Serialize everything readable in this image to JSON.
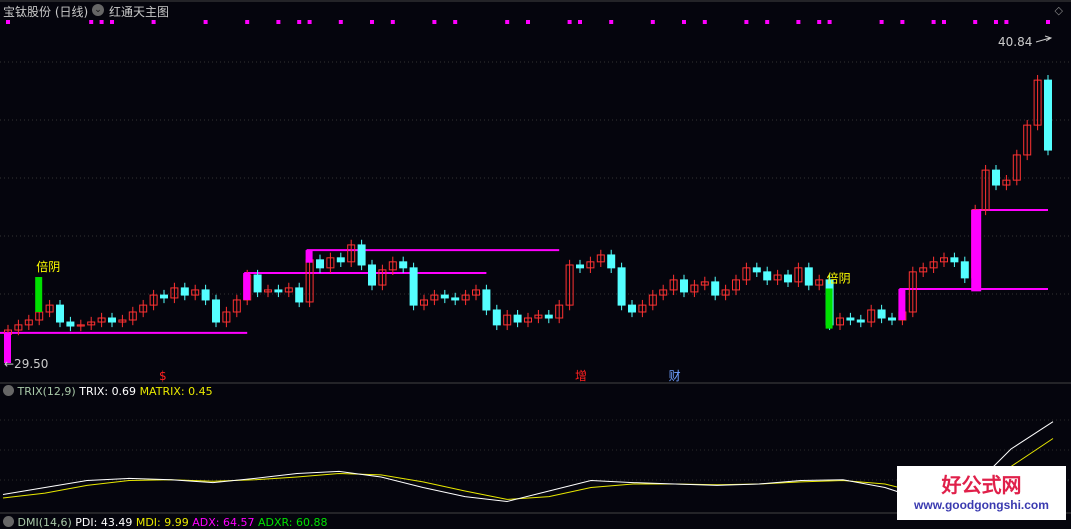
{
  "header": {
    "title": "宝钛股份 (日线)",
    "template": "红通天主图",
    "dropdown_icon": "chevron-down-icon",
    "settings_icon": "diamond-icon"
  },
  "price": {
    "high_label": "40.84",
    "low_label": "29.50",
    "high": 40.84,
    "low": 29.5
  },
  "colors": {
    "up": "#ff3232",
    "down": "#54ffff",
    "signal": "#ff00ff",
    "bear": "#00e000",
    "label": "#ffff00",
    "trix": "#ffffff",
    "matrix": "#e8e800"
  },
  "candles": {
    "open": [
      30.5,
      30.65,
      30.83,
      31.0,
      31.28,
      31.52,
      30.93,
      30.79,
      30.83,
      30.93,
      31.07,
      30.93,
      31.0,
      31.28,
      31.52,
      31.87,
      31.77,
      32.12,
      31.87,
      32.05,
      31.7,
      30.93,
      31.28,
      31.7,
      32.57,
      31.98,
      32.05,
      31.98,
      32.12,
      31.63,
      33.1,
      32.82,
      33.17,
      33.03,
      33.62,
      32.92,
      32.22,
      32.75,
      33.03,
      32.82,
      31.52,
      31.7,
      31.87,
      31.77,
      31.7,
      31.87,
      32.05,
      31.35,
      30.83,
      31.17,
      30.93,
      31.07,
      31.17,
      31.07,
      31.52,
      32.92,
      32.82,
      33.03,
      33.27,
      32.82,
      31.52,
      31.28,
      31.52,
      31.87,
      32.05,
      32.4,
      31.98,
      32.22,
      32.33,
      31.87,
      32.05,
      32.4,
      32.82,
      32.68,
      32.4,
      32.57,
      32.33,
      32.82,
      32.22,
      32.4,
      30.83,
      31.07,
      31.0,
      30.93,
      31.35,
      31.07,
      31.0,
      31.28,
      32.68,
      32.82,
      33.03,
      33.17,
      33.03,
      32.47,
      34.84,
      36.23,
      35.71,
      35.88,
      36.76,
      37.8,
      39.37
    ],
    "close": [
      30.65,
      30.83,
      31.0,
      31.28,
      31.52,
      30.93,
      30.79,
      30.83,
      30.93,
      31.07,
      30.93,
      31.0,
      31.28,
      31.52,
      31.87,
      31.77,
      32.12,
      31.87,
      32.05,
      31.7,
      30.93,
      31.28,
      31.7,
      32.57,
      31.98,
      32.05,
      31.98,
      32.12,
      31.63,
      33.1,
      32.82,
      33.17,
      33.03,
      33.62,
      32.92,
      32.22,
      32.75,
      33.03,
      32.82,
      31.52,
      31.7,
      31.87,
      31.77,
      31.7,
      31.87,
      32.05,
      31.35,
      30.83,
      31.17,
      30.93,
      31.07,
      31.17,
      31.07,
      31.52,
      32.92,
      32.82,
      33.03,
      33.27,
      32.82,
      31.52,
      31.28,
      31.52,
      31.87,
      32.05,
      32.4,
      31.98,
      32.22,
      32.33,
      31.87,
      32.05,
      32.4,
      32.82,
      32.68,
      32.4,
      32.57,
      32.33,
      32.82,
      32.22,
      32.4,
      30.83,
      31.07,
      31.0,
      30.93,
      31.35,
      31.07,
      31.0,
      31.28,
      32.68,
      32.82,
      33.03,
      33.17,
      33.03,
      32.47,
      34.84,
      36.23,
      35.71,
      35.88,
      36.76,
      37.8,
      39.37,
      36.93
    ]
  },
  "support_lines": [
    {
      "price": 30.55,
      "from": 0,
      "to": 23
    },
    {
      "price": 32.64,
      "from": 23,
      "to": 46
    },
    {
      "price": 33.44,
      "from": 29,
      "to": 53
    },
    {
      "price": 32.08,
      "from": 86,
      "to": 100
    },
    {
      "price": 34.84,
      "from": 93,
      "to": 100
    }
  ],
  "signal_bars": [
    {
      "index": 0,
      "top": 30.55,
      "bottom": 29.5,
      "type": "signal"
    },
    {
      "index": 23,
      "top": 32.64,
      "bottom": 31.7,
      "type": "signal"
    },
    {
      "index": 29,
      "top": 33.44,
      "bottom": 33.0,
      "type": "signal"
    },
    {
      "index": 86,
      "top": 32.08,
      "bottom": 31.0,
      "type": "signal"
    },
    {
      "index": 93,
      "top": 34.84,
      "bottom": 32.0,
      "type": "signal"
    },
    {
      "index": 3,
      "top": 32.5,
      "bottom": 31.28,
      "type": "bear",
      "label": "倍阴"
    },
    {
      "index": 79,
      "top": 32.1,
      "bottom": 30.7,
      "type": "bear",
      "label": "倍阴"
    }
  ],
  "top_markers": [
    0,
    8,
    9,
    10,
    14,
    19,
    23,
    26,
    28,
    29,
    32,
    35,
    37,
    41,
    43,
    48,
    50,
    54,
    55,
    58,
    62,
    65,
    67,
    71,
    73,
    76,
    78,
    79,
    84,
    86,
    89,
    90,
    93,
    95,
    96,
    100
  ],
  "event_labels": [
    {
      "index": 15,
      "text": "$",
      "color": "#ff2020"
    },
    {
      "index": 55,
      "text": "增",
      "color": "#ff2020"
    },
    {
      "index": 64,
      "text": "财",
      "color": "#70a0ff"
    }
  ],
  "trix_panel": {
    "name": "TRIX(12,9)",
    "trix_label": "TRIX: 0.69",
    "matrix_label": "MATRIX: 0.45",
    "trix": [
      -0.35,
      -0.25,
      -0.15,
      -0.12,
      -0.14,
      -0.18,
      -0.12,
      -0.05,
      -0.02,
      -0.1,
      -0.25,
      -0.38,
      -0.45,
      -0.3,
      -0.15,
      -0.18,
      -0.2,
      -0.22,
      -0.2,
      -0.15,
      -0.14,
      -0.25,
      -0.45,
      -0.3,
      0.3,
      0.69
    ],
    "matrix": [
      -0.4,
      -0.33,
      -0.22,
      -0.15,
      -0.14,
      -0.16,
      -0.14,
      -0.1,
      -0.05,
      -0.07,
      -0.17,
      -0.3,
      -0.42,
      -0.38,
      -0.25,
      -0.2,
      -0.2,
      -0.21,
      -0.2,
      -0.17,
      -0.15,
      -0.2,
      -0.35,
      -0.38,
      0.05,
      0.45
    ]
  },
  "dmi_panel": {
    "name": "DMI(14,6)",
    "pdi": "PDI: 43.49",
    "mdi": "MDI: 9.99",
    "adx": "ADX: 64.57",
    "adxr": "ADXR: 60.88"
  },
  "watermark": {
    "cn": "好公式网",
    "url": "www.goodgongshi.com"
  }
}
